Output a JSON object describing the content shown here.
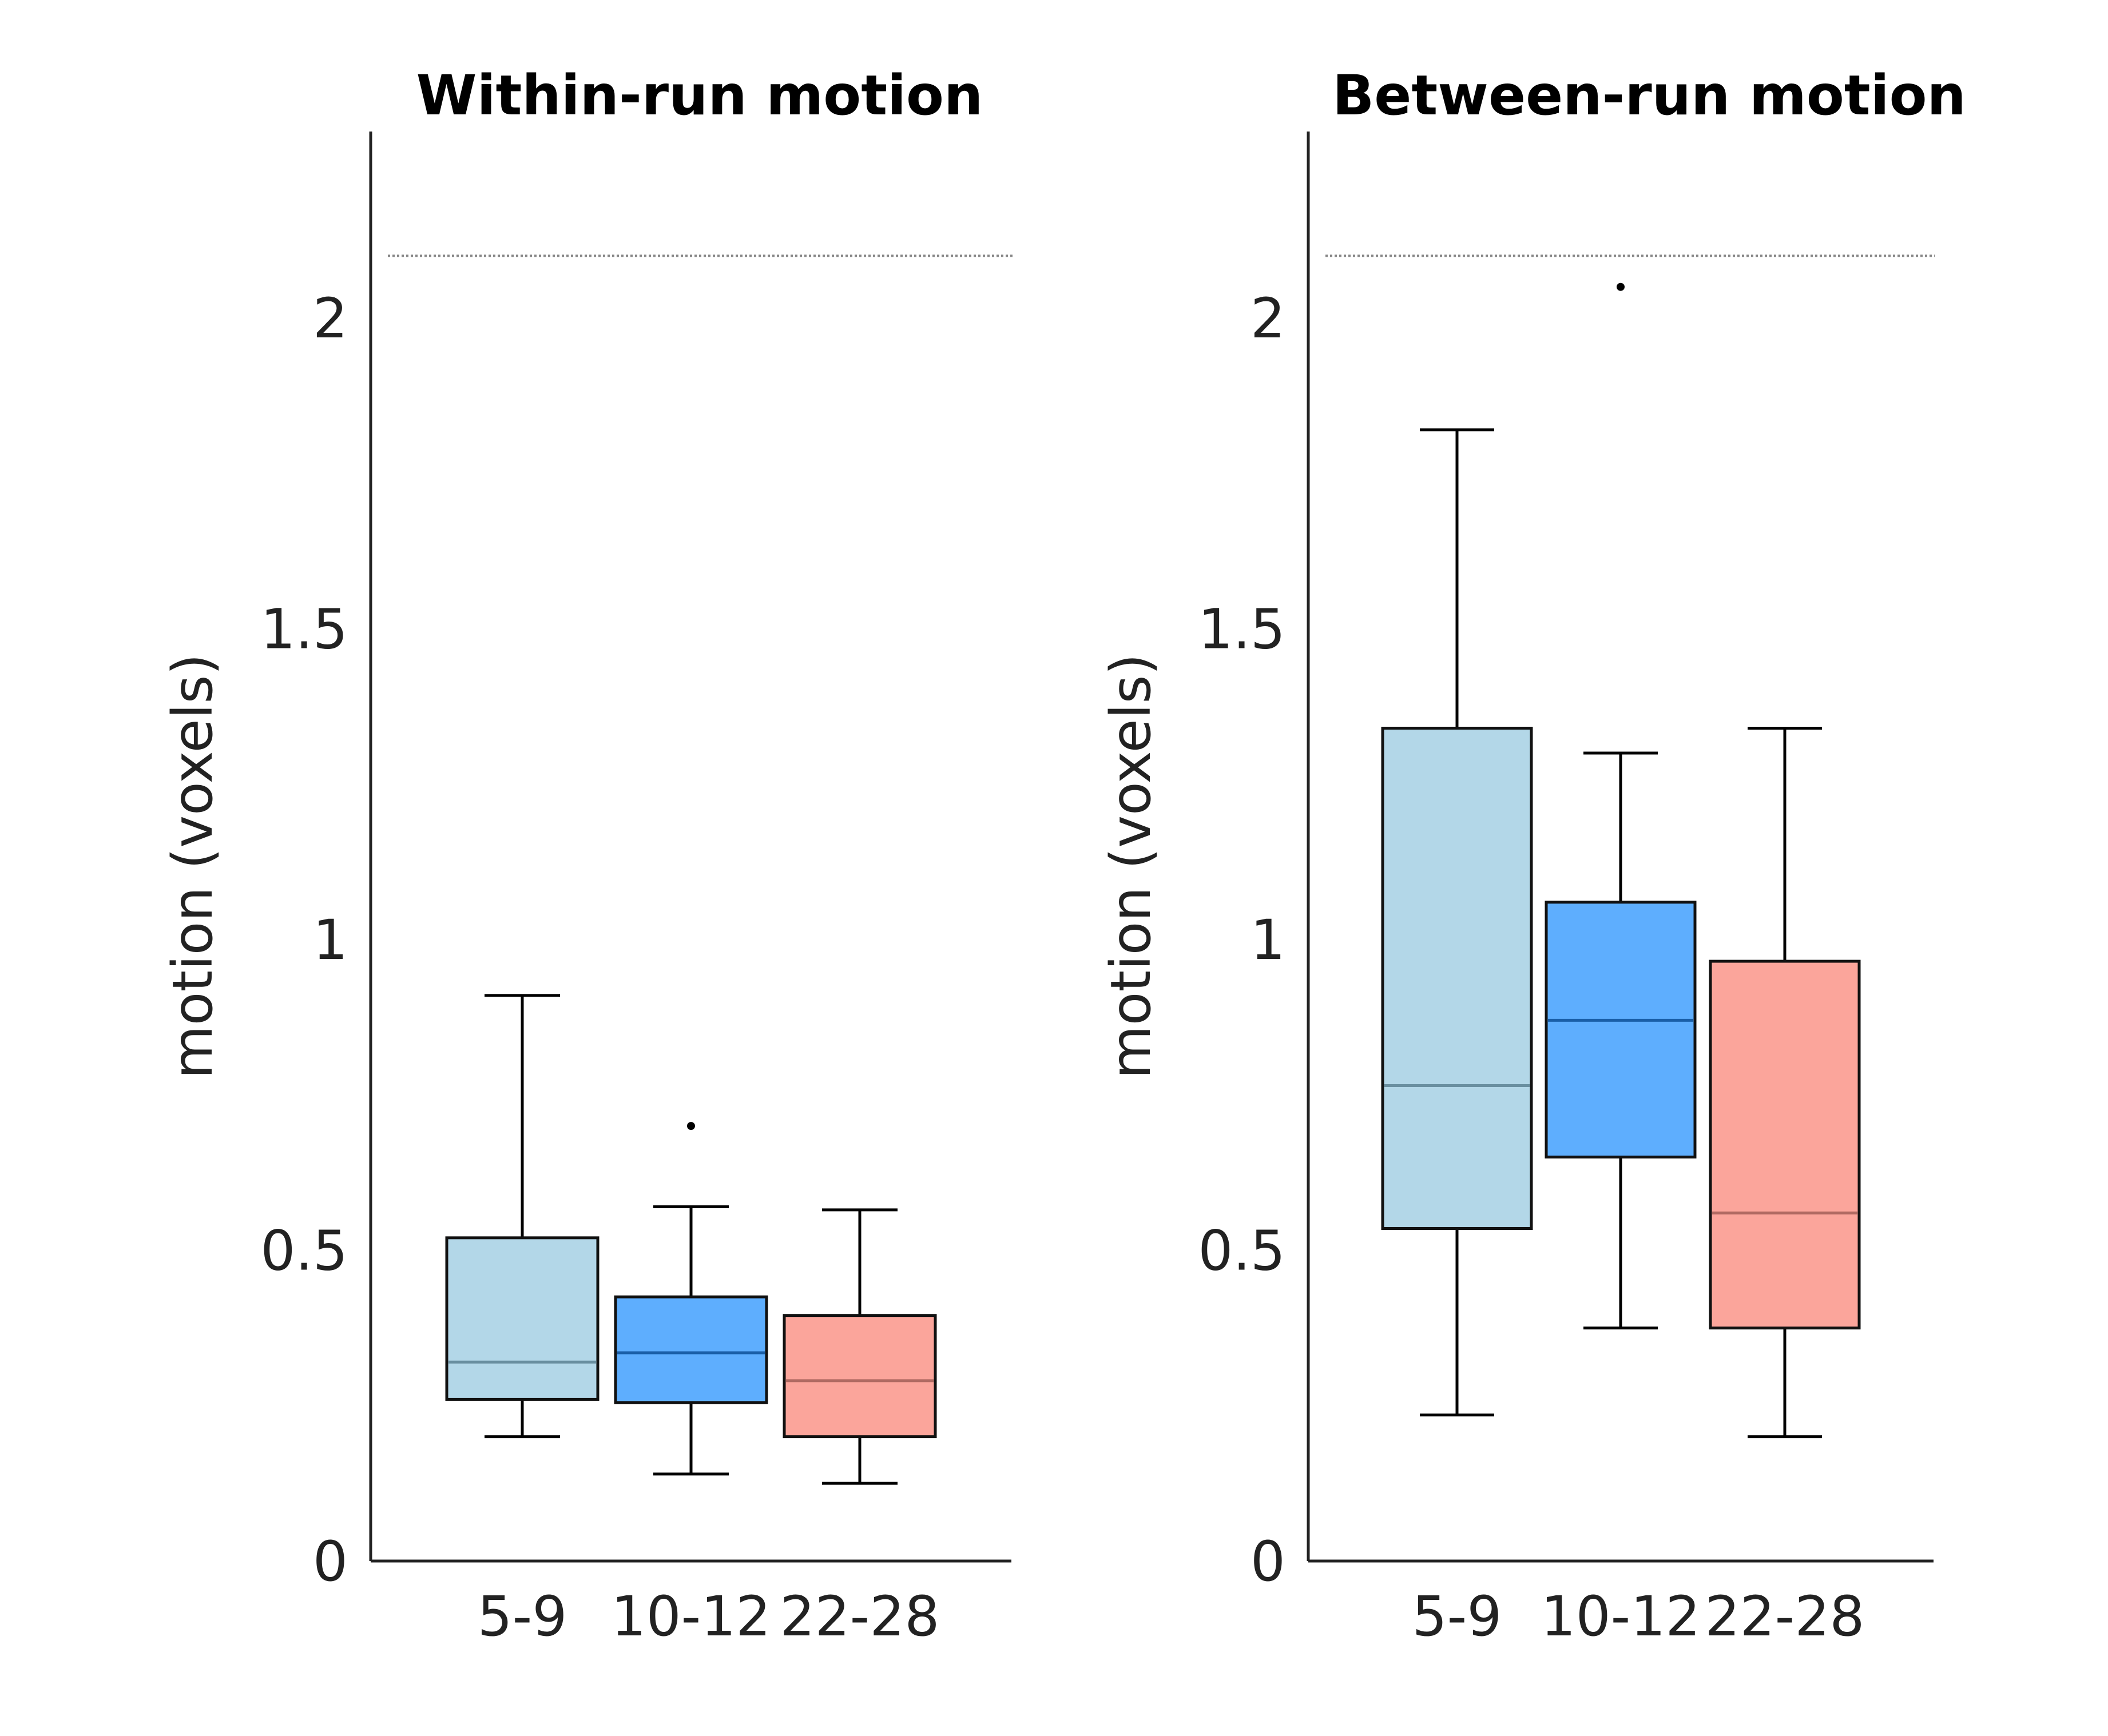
{
  "chart_data": [
    {
      "type": "box",
      "title": "Within-run motion",
      "ylabel": "motion (voxels)",
      "ylim": [
        0,
        2.3
      ],
      "yticks": [
        "0",
        "0.5",
        "1",
        "1.5",
        "2"
      ],
      "reference_line": 2.1,
      "categories": [
        "5-9",
        "10-12",
        "22-28"
      ],
      "boxes": [
        {
          "category": "5-9",
          "whisker_low": 0.2,
          "q1": 0.26,
          "median": 0.32,
          "q3": 0.52,
          "whisker_high": 0.91,
          "outliers": [],
          "color": "#b3d7e8",
          "median_color": "#6a8fa0"
        },
        {
          "category": "10-12",
          "whisker_low": 0.14,
          "q1": 0.255,
          "median": 0.335,
          "q3": 0.425,
          "whisker_high": 0.57,
          "outliers": [
            0.7
          ],
          "color": "#5eaefe",
          "median_color": "#1a5fa8"
        },
        {
          "category": "22-28",
          "whisker_low": 0.125,
          "q1": 0.2,
          "median": 0.29,
          "q3": 0.395,
          "whisker_high": 0.565,
          "outliers": [],
          "color": "#fba59b",
          "median_color": "#b06a62"
        }
      ],
      "grid": false
    },
    {
      "type": "box",
      "title": "Between-run motion",
      "ylabel": "motion (voxels)",
      "ylim": [
        0,
        2.3
      ],
      "yticks": [
        "0",
        "0.5",
        "1",
        "1.5",
        "2"
      ],
      "reference_line": 2.1,
      "categories": [
        "5-9",
        "10-12",
        "22-28"
      ],
      "boxes": [
        {
          "category": "5-9",
          "whisker_low": 0.235,
          "q1": 0.535,
          "median": 0.765,
          "q3": 1.34,
          "whisker_high": 1.82,
          "outliers": [],
          "color": "#b3d7e8",
          "median_color": "#6a8fa0"
        },
        {
          "category": "10-12",
          "whisker_low": 0.375,
          "q1": 0.65,
          "median": 0.87,
          "q3": 1.06,
          "whisker_high": 1.3,
          "outliers": [
            2.05
          ],
          "color": "#5eaefe",
          "median_color": "#1a5fa8"
        },
        {
          "category": "22-28",
          "whisker_low": 0.2,
          "q1": 0.375,
          "median": 0.56,
          "q3": 0.965,
          "whisker_high": 1.34,
          "outliers": [],
          "color": "#fba59b",
          "median_color": "#b06a62"
        }
      ],
      "grid": false
    }
  ]
}
